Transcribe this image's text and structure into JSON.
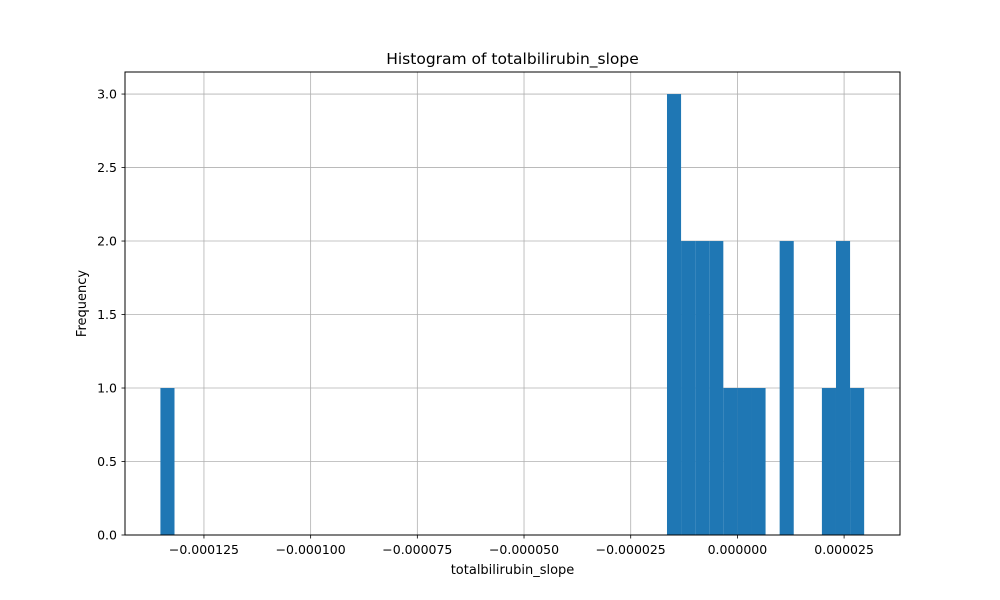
{
  "chart_data": {
    "type": "bar",
    "title": "Histogram of totalbilirubin_slope",
    "xlabel": "totalbilirubin_slope",
    "ylabel": "Frequency",
    "xlim": [
      -0.0001435,
      3.81e-05
    ],
    "ylim": [
      0,
      3.15
    ],
    "grid": true,
    "bar_color": "#1f77b4",
    "x_ticks": [
      {
        "value": -0.000125,
        "label": "−0.000125"
      },
      {
        "value": -0.0001,
        "label": "−0.000100"
      },
      {
        "value": -7.5e-05,
        "label": "−0.000075"
      },
      {
        "value": -5e-05,
        "label": "−0.000050"
      },
      {
        "value": -2.5e-05,
        "label": "−0.000025"
      },
      {
        "value": 0.0,
        "label": "0.000000"
      },
      {
        "value": 2.5e-05,
        "label": "0.000025"
      }
    ],
    "y_ticks": [
      {
        "value": 0.0,
        "label": "0.0"
      },
      {
        "value": 0.5,
        "label": "0.5"
      },
      {
        "value": 1.0,
        "label": "1.0"
      },
      {
        "value": 1.5,
        "label": "1.5"
      },
      {
        "value": 2.0,
        "label": "2.0"
      },
      {
        "value": 2.5,
        "label": "2.5"
      },
      {
        "value": 3.0,
        "label": "3.0"
      }
    ],
    "bins": [
      {
        "x0": -0.0001352,
        "x1": -0.0001319,
        "count": 1
      },
      {
        "x0": -1.65e-05,
        "x1": -1.32e-05,
        "count": 3
      },
      {
        "x0": -1.32e-05,
        "x1": -9.9e-06,
        "count": 2
      },
      {
        "x0": -9.9e-06,
        "x1": -6.6e-06,
        "count": 2
      },
      {
        "x0": -6.6e-06,
        "x1": -3.3e-06,
        "count": 2
      },
      {
        "x0": -3.3e-06,
        "x1": 0.0,
        "count": 1
      },
      {
        "x0": 0.0,
        "x1": 3.3e-06,
        "count": 1
      },
      {
        "x0": 3.3e-06,
        "x1": 6.6e-06,
        "count": 1
      },
      {
        "x0": 9.9e-06,
        "x1": 1.32e-05,
        "count": 2
      },
      {
        "x0": 1.98e-05,
        "x1": 2.31e-05,
        "count": 1
      },
      {
        "x0": 2.31e-05,
        "x1": 2.64e-05,
        "count": 2
      },
      {
        "x0": 2.64e-05,
        "x1": 2.97e-05,
        "count": 1
      }
    ]
  }
}
